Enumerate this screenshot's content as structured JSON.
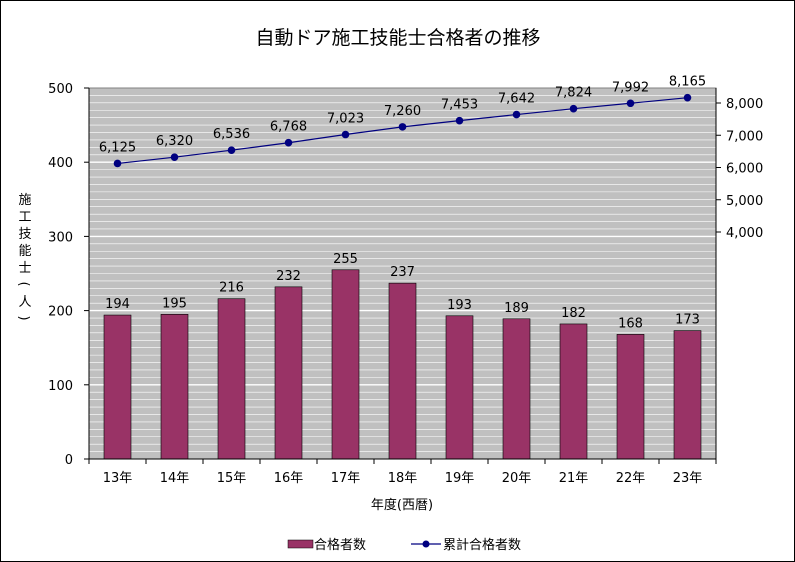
{
  "chart_data": {
    "type": "bar+line",
    "title": "自動ドア施工技能士合格者の推移",
    "xlabel": "年度(西暦)",
    "ylabel": "施工技能士(人)",
    "categories": [
      "13年",
      "14年",
      "15年",
      "16年",
      "17年",
      "18年",
      "19年",
      "20年",
      "21年",
      "22年",
      "23年"
    ],
    "series": [
      {
        "name": "合格者数",
        "type": "bar",
        "axis": "left",
        "values": [
          194,
          195,
          216,
          232,
          255,
          237,
          193,
          189,
          182,
          168,
          173
        ],
        "labels": [
          "194",
          "195",
          "216",
          "232",
          "255",
          "237",
          "193",
          "189",
          "182",
          "168",
          "173"
        ],
        "color": "#993366"
      },
      {
        "name": "累計合格者数",
        "type": "line",
        "axis": "right",
        "values": [
          6125,
          6320,
          6536,
          6768,
          7023,
          7260,
          7453,
          7642,
          7824,
          7992,
          8165
        ],
        "labels": [
          "6,125",
          "6,320",
          "6,536",
          "6,768",
          "7,023",
          "7,260",
          "7,453",
          "7,642",
          "7,824",
          "7,992",
          "8,165"
        ],
        "color": "#000080"
      }
    ],
    "y_left": {
      "lim": [
        0,
        500
      ],
      "ticks": [
        0,
        100,
        200,
        300,
        400,
        500
      ],
      "tick_labels": [
        "0",
        "100",
        "200",
        "300",
        "400",
        "500"
      ]
    },
    "y_right": {
      "ticks": [
        4000,
        5000,
        6000,
        7000,
        8000
      ],
      "tick_labels": [
        "4,000",
        "5,000",
        "6,000",
        "7,000",
        "8,000"
      ]
    },
    "grid": true,
    "legend_position": "bottom-center",
    "colors": {
      "plot_background": "#c0c0c0",
      "gridline": "#ffffff"
    }
  }
}
